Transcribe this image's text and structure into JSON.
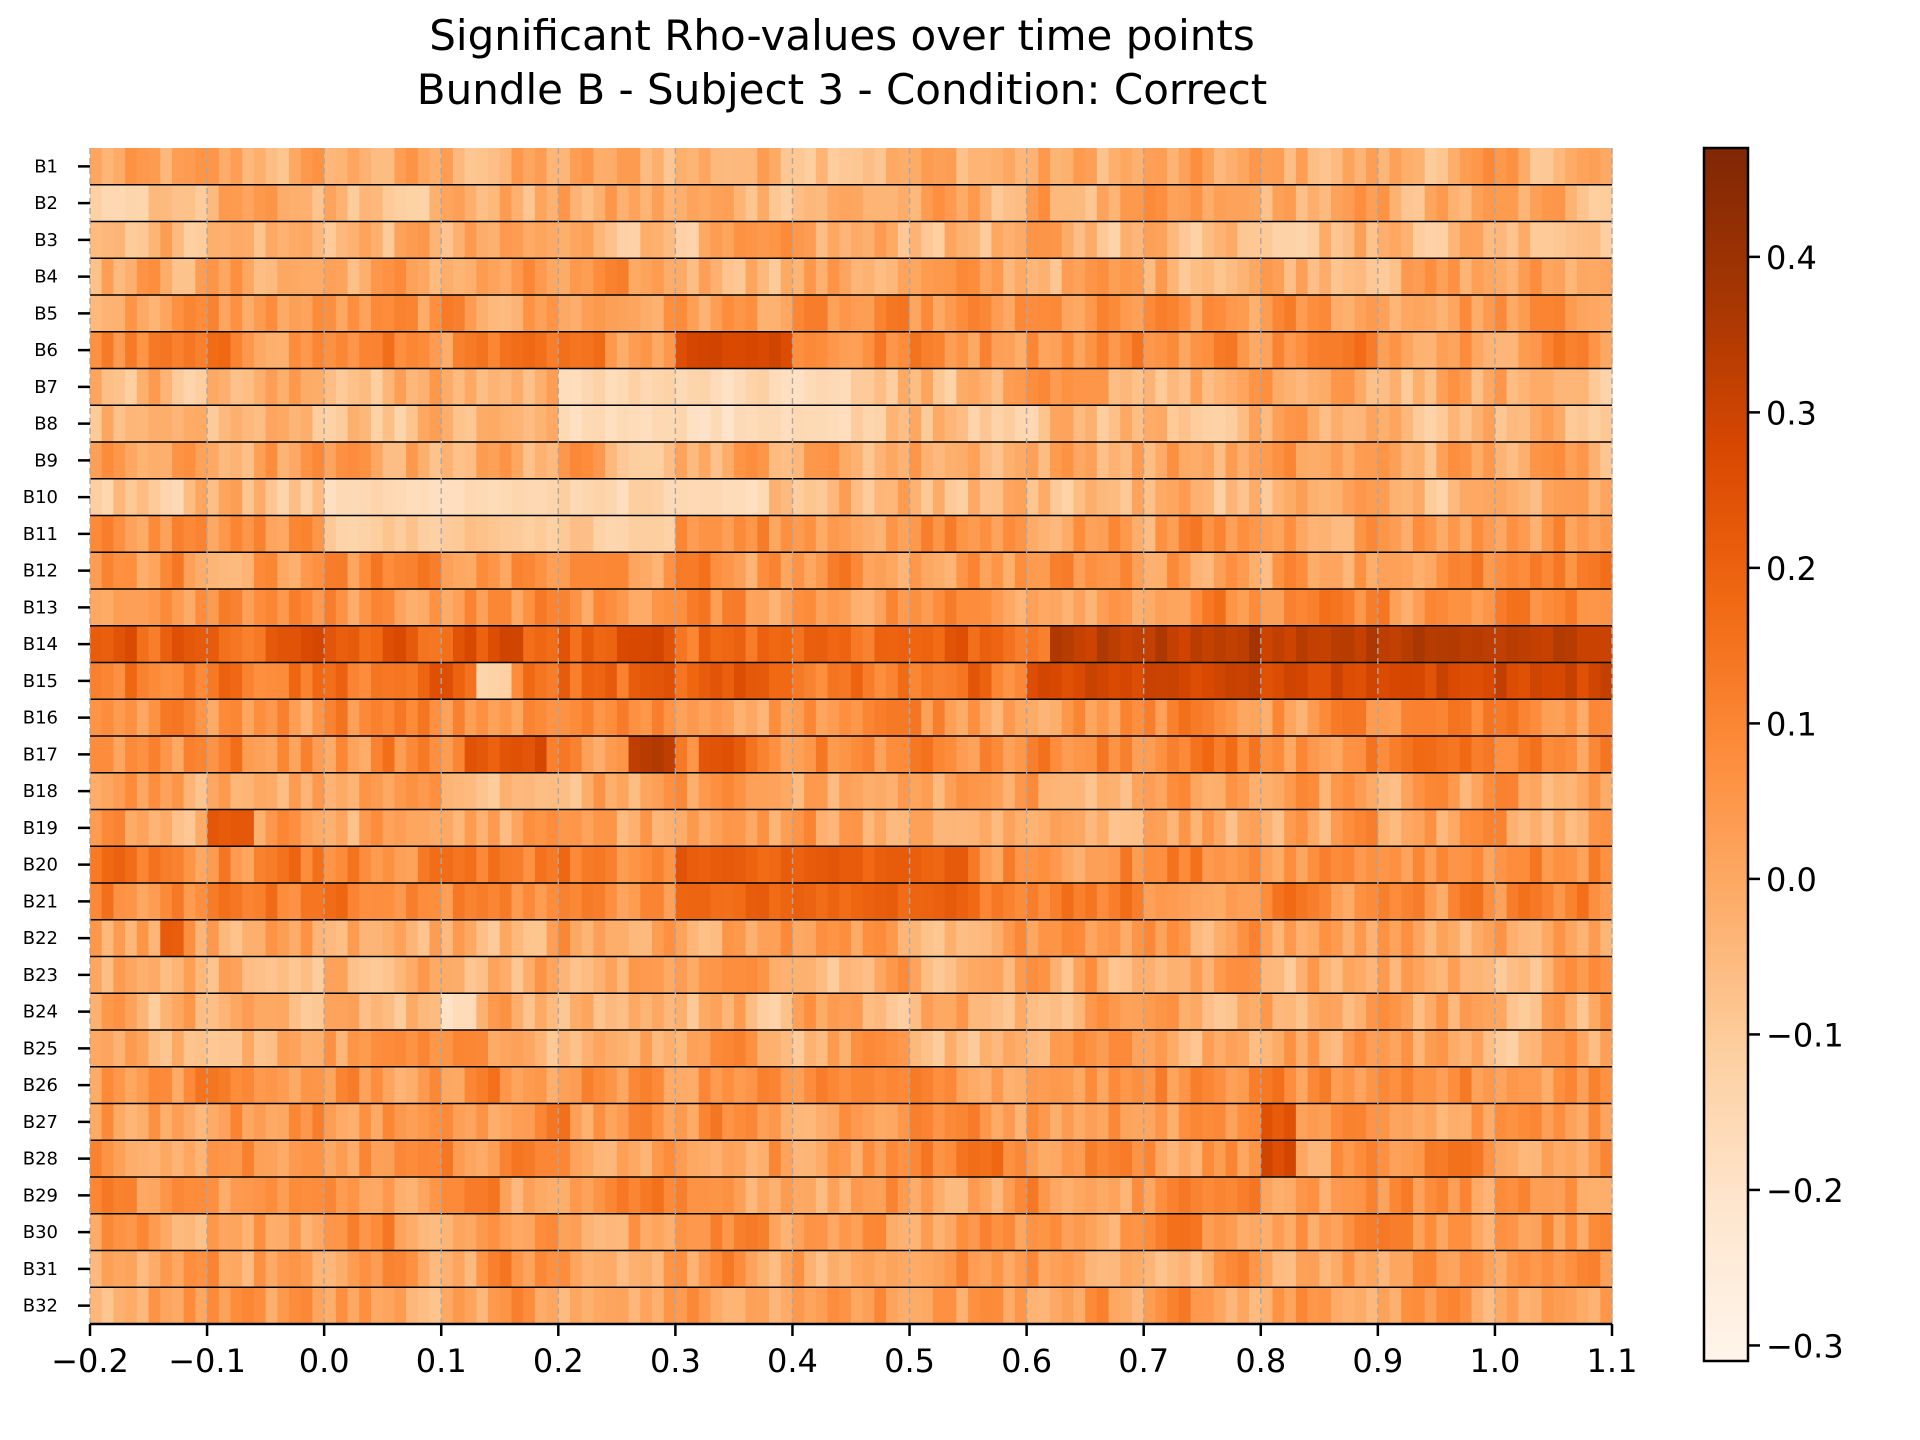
{
  "chart_data": {
    "type": "heatmap",
    "title": "Significant Rho-values over time points",
    "subtitle": "Bundle B - Subject 3 - Condition: Correct",
    "xlabel": "",
    "ylabel": "",
    "x_range": [
      -0.2,
      1.1
    ],
    "x_ticks": [
      "−0.2",
      "−0.1",
      "0.0",
      "0.1",
      "0.2",
      "0.3",
      "0.4",
      "0.5",
      "0.6",
      "0.7",
      "0.8",
      "0.9",
      "1.0",
      "1.1"
    ],
    "x_tick_values": [
      -0.2,
      -0.1,
      0.0,
      0.1,
      0.2,
      0.3,
      0.4,
      0.5,
      0.6,
      0.7,
      0.8,
      0.9,
      1.0,
      1.1
    ],
    "rows": [
      "B1",
      "B2",
      "B3",
      "B4",
      "B5",
      "B6",
      "B7",
      "B8",
      "B9",
      "B10",
      "B11",
      "B12",
      "B13",
      "B14",
      "B15",
      "B16",
      "B17",
      "B18",
      "B19",
      "B20",
      "B21",
      "B22",
      "B23",
      "B24",
      "B25",
      "B26",
      "B27",
      "B28",
      "B29",
      "B30",
      "B31",
      "B32"
    ],
    "colorbar": {
      "colormap": "Oranges",
      "range": [
        -0.31,
        0.47
      ],
      "ticks": [
        -0.3,
        -0.2,
        -0.1,
        0.0,
        0.1,
        0.2,
        0.3,
        0.4
      ],
      "tick_labels": [
        "−0.3",
        "−0.2",
        "−0.1",
        "0.0",
        "0.1",
        "0.2",
        "0.3",
        "0.4"
      ]
    },
    "grid": "vertical dashed lines at x ticks",
    "num_time_points": 130,
    "row_baseline": [
      -0.02,
      -0.02,
      -0.03,
      0.0,
      0.03,
      0.08,
      -0.03,
      -0.05,
      0.0,
      -0.04,
      0.05,
      0.05,
      0.06,
      0.2,
      0.16,
      0.06,
      0.07,
      0.0,
      0.0,
      0.09,
      0.08,
      0.01,
      -0.01,
      -0.02,
      0.0,
      0.05,
      0.05,
      0.06,
      0.04,
      0.04,
      0.03,
      0.03
    ],
    "hot_spots": [
      {
        "row": "B6",
        "x": [
          0.3,
          0.4
        ],
        "value": 0.38
      },
      {
        "row": "B14",
        "x": [
          0.62,
          1.1
        ],
        "value": 0.38
      },
      {
        "row": "B15",
        "x": [
          0.6,
          1.1
        ],
        "value": 0.33
      },
      {
        "row": "B17",
        "x": [
          0.26,
          0.3
        ],
        "value": 0.43
      },
      {
        "row": "B17",
        "x": [
          0.12,
          0.19
        ],
        "value": 0.3
      },
      {
        "row": "B17",
        "x": [
          0.32,
          0.36
        ],
        "value": 0.3
      },
      {
        "row": "B19",
        "x": [
          -0.1,
          -0.06
        ],
        "value": 0.33
      },
      {
        "row": "B20",
        "x": [
          0.3,
          0.55
        ],
        "value": 0.25
      },
      {
        "row": "B21",
        "x": [
          0.3,
          0.55
        ],
        "value": 0.24
      },
      {
        "row": "B22",
        "x": [
          -0.14,
          -0.12
        ],
        "value": 0.3
      },
      {
        "row": "B28",
        "x": [
          0.8,
          0.83
        ],
        "value": 0.34
      },
      {
        "row": "B27",
        "x": [
          0.8,
          0.83
        ],
        "value": 0.3
      }
    ],
    "cold_spots": [
      {
        "row": "B7",
        "x": [
          0.2,
          0.45
        ],
        "value": -0.2
      },
      {
        "row": "B8",
        "x": [
          0.2,
          0.45
        ],
        "value": -0.22
      },
      {
        "row": "B10",
        "x": [
          0.0,
          0.38
        ],
        "value": -0.2
      },
      {
        "row": "B11",
        "x": [
          0.0,
          0.3
        ],
        "value": -0.17
      },
      {
        "row": "B24",
        "x": [
          0.1,
          0.13
        ],
        "value": -0.28
      },
      {
        "row": "B15",
        "x": [
          0.13,
          0.16
        ],
        "value": -0.25
      },
      {
        "row": "B2",
        "x": [
          -0.2,
          -0.15
        ],
        "value": -0.2
      }
    ]
  }
}
